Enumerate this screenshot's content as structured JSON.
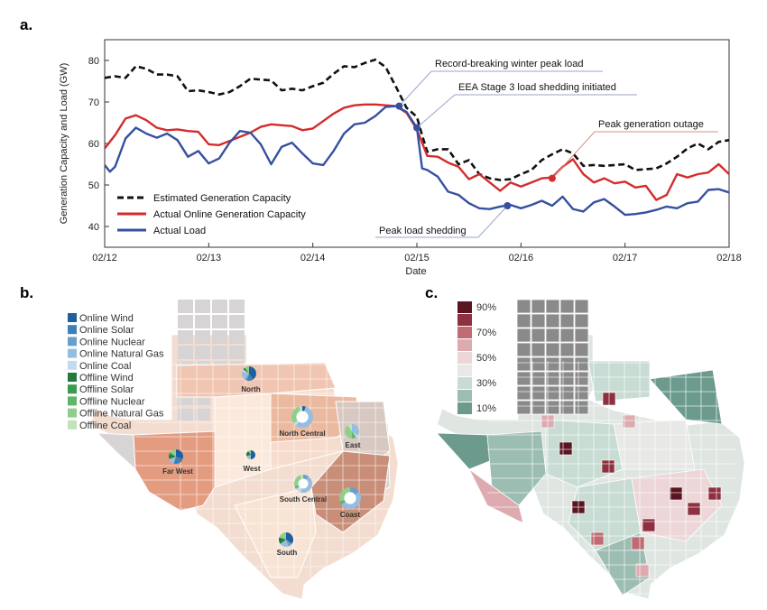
{
  "panels": {
    "a": "a.",
    "b": "b.",
    "c": "c."
  },
  "chart_data": {
    "type": "line",
    "xlabel": "Date",
    "ylabel": "Generation Capacity and Load (GW)",
    "xlim_days": [
      12,
      18
    ],
    "ylim": [
      35,
      85
    ],
    "xticks": [
      {
        "pos": 12,
        "label": "02/12"
      },
      {
        "pos": 13,
        "label": "02/13"
      },
      {
        "pos": 14,
        "label": "02/14"
      },
      {
        "pos": 15,
        "label": "02/15"
      },
      {
        "pos": 16,
        "label": "02/16"
      },
      {
        "pos": 17,
        "label": "02/17"
      },
      {
        "pos": 18,
        "label": "02/18"
      }
    ],
    "yticks": [
      40,
      50,
      60,
      70,
      80
    ],
    "legend_position": "bottom-left",
    "series": [
      {
        "name": "Estimated Generation Capacity",
        "color": "#111111",
        "dash": true,
        "points": [
          [
            12.0,
            75.8
          ],
          [
            12.1,
            76.2
          ],
          [
            12.2,
            75.8
          ],
          [
            12.3,
            78.6
          ],
          [
            12.4,
            78.0
          ],
          [
            12.5,
            76.6
          ],
          [
            12.6,
            76.6
          ],
          [
            12.7,
            76.2
          ],
          [
            12.8,
            72.6
          ],
          [
            12.9,
            72.8
          ],
          [
            13.0,
            72.4
          ],
          [
            13.1,
            71.8
          ],
          [
            13.2,
            72.4
          ],
          [
            13.3,
            73.8
          ],
          [
            13.4,
            75.6
          ],
          [
            13.5,
            75.4
          ],
          [
            13.6,
            75.2
          ],
          [
            13.7,
            72.8
          ],
          [
            13.8,
            73.2
          ],
          [
            13.9,
            72.8
          ],
          [
            14.0,
            73.8
          ],
          [
            14.1,
            74.6
          ],
          [
            14.2,
            76.8
          ],
          [
            14.3,
            78.6
          ],
          [
            14.4,
            78.4
          ],
          [
            14.5,
            79.4
          ],
          [
            14.6,
            80.2
          ],
          [
            14.7,
            78.4
          ],
          [
            14.8,
            73.6
          ],
          [
            14.9,
            68.6
          ],
          [
            15.0,
            66.4
          ],
          [
            15.05,
            62.0
          ],
          [
            15.1,
            58.0
          ],
          [
            15.2,
            58.6
          ],
          [
            15.3,
            58.6
          ],
          [
            15.4,
            55.0
          ],
          [
            15.5,
            56.0
          ],
          [
            15.6,
            52.6
          ],
          [
            15.7,
            51.6
          ],
          [
            15.8,
            51.2
          ],
          [
            15.9,
            51.4
          ],
          [
            16.0,
            52.6
          ],
          [
            16.1,
            53.6
          ],
          [
            16.2,
            56.0
          ],
          [
            16.3,
            57.4
          ],
          [
            16.4,
            58.6
          ],
          [
            16.5,
            57.6
          ],
          [
            16.6,
            54.6
          ],
          [
            16.7,
            54.8
          ],
          [
            16.8,
            54.6
          ],
          [
            16.9,
            54.8
          ],
          [
            17.0,
            55.0
          ],
          [
            17.1,
            53.6
          ],
          [
            17.2,
            53.8
          ],
          [
            17.3,
            54.0
          ],
          [
            17.4,
            55.2
          ],
          [
            17.5,
            56.8
          ],
          [
            17.6,
            58.8
          ],
          [
            17.7,
            60.0
          ],
          [
            17.8,
            58.6
          ],
          [
            17.9,
            60.4
          ],
          [
            18.0,
            60.8
          ]
        ]
      },
      {
        "name": "Actual Online Generation Capacity",
        "color": "#d42c2c",
        "dash": false,
        "points": [
          [
            12.0,
            58.8
          ],
          [
            12.1,
            62.0
          ],
          [
            12.2,
            66.0
          ],
          [
            12.3,
            66.8
          ],
          [
            12.4,
            65.6
          ],
          [
            12.5,
            63.8
          ],
          [
            12.6,
            63.2
          ],
          [
            12.7,
            63.4
          ],
          [
            12.8,
            63.0
          ],
          [
            12.9,
            62.8
          ],
          [
            13.0,
            59.8
          ],
          [
            13.1,
            59.6
          ],
          [
            13.2,
            60.6
          ],
          [
            13.3,
            61.6
          ],
          [
            13.4,
            62.6
          ],
          [
            13.5,
            64.0
          ],
          [
            13.6,
            64.6
          ],
          [
            13.7,
            64.4
          ],
          [
            13.8,
            64.2
          ],
          [
            13.9,
            63.2
          ],
          [
            14.0,
            63.6
          ],
          [
            14.1,
            65.4
          ],
          [
            14.2,
            67.2
          ],
          [
            14.3,
            68.6
          ],
          [
            14.4,
            69.2
          ],
          [
            14.5,
            69.4
          ],
          [
            14.6,
            69.4
          ],
          [
            14.7,
            69.2
          ],
          [
            14.8,
            69.0
          ],
          [
            14.9,
            67.4
          ],
          [
            15.0,
            63.4
          ],
          [
            15.1,
            57.0
          ],
          [
            15.2,
            56.8
          ],
          [
            15.3,
            55.4
          ],
          [
            15.4,
            54.4
          ],
          [
            15.5,
            51.4
          ],
          [
            15.6,
            52.6
          ],
          [
            15.7,
            50.6
          ],
          [
            15.8,
            48.6
          ],
          [
            15.9,
            50.6
          ],
          [
            16.0,
            49.6
          ],
          [
            16.1,
            50.6
          ],
          [
            16.2,
            51.6
          ],
          [
            16.3,
            51.8
          ],
          [
            16.4,
            54.4
          ],
          [
            16.5,
            56.2
          ],
          [
            16.6,
            52.6
          ],
          [
            16.7,
            50.6
          ],
          [
            16.8,
            51.6
          ],
          [
            16.9,
            50.4
          ],
          [
            17.0,
            50.8
          ],
          [
            17.1,
            49.4
          ],
          [
            17.2,
            49.8
          ],
          [
            17.3,
            46.4
          ],
          [
            17.4,
            47.6
          ],
          [
            17.5,
            52.6
          ],
          [
            17.6,
            51.8
          ],
          [
            17.7,
            52.6
          ],
          [
            17.8,
            53.0
          ],
          [
            17.9,
            55.0
          ],
          [
            18.0,
            52.6
          ]
        ]
      },
      {
        "name": "Actual Load",
        "color": "#3650a0",
        "dash": false,
        "points": [
          [
            12.0,
            54.8
          ],
          [
            12.05,
            53.2
          ],
          [
            12.1,
            54.4
          ],
          [
            12.2,
            61.2
          ],
          [
            12.3,
            63.8
          ],
          [
            12.4,
            62.4
          ],
          [
            12.5,
            61.4
          ],
          [
            12.6,
            62.4
          ],
          [
            12.7,
            60.8
          ],
          [
            12.8,
            56.8
          ],
          [
            12.9,
            58.2
          ],
          [
            13.0,
            55.2
          ],
          [
            13.1,
            56.4
          ],
          [
            13.2,
            60.2
          ],
          [
            13.3,
            63.0
          ],
          [
            13.4,
            62.6
          ],
          [
            13.5,
            59.8
          ],
          [
            13.6,
            55.0
          ],
          [
            13.7,
            59.2
          ],
          [
            13.8,
            60.2
          ],
          [
            13.9,
            57.6
          ],
          [
            14.0,
            55.2
          ],
          [
            14.1,
            54.8
          ],
          [
            14.2,
            58.2
          ],
          [
            14.3,
            62.4
          ],
          [
            14.4,
            64.6
          ],
          [
            14.5,
            65.0
          ],
          [
            14.6,
            66.6
          ],
          [
            14.7,
            68.8
          ],
          [
            14.8,
            69.0
          ],
          [
            14.9,
            67.6
          ],
          [
            15.0,
            63.8
          ],
          [
            15.05,
            54.0
          ],
          [
            15.1,
            53.6
          ],
          [
            15.2,
            52.0
          ],
          [
            15.3,
            48.4
          ],
          [
            15.4,
            47.6
          ],
          [
            15.5,
            45.6
          ],
          [
            15.6,
            44.4
          ],
          [
            15.7,
            44.2
          ],
          [
            15.8,
            44.8
          ],
          [
            15.9,
            45.2
          ],
          [
            16.0,
            44.4
          ],
          [
            16.1,
            45.2
          ],
          [
            16.2,
            46.2
          ],
          [
            16.3,
            45.0
          ],
          [
            16.4,
            47.2
          ],
          [
            16.5,
            44.2
          ],
          [
            16.6,
            43.6
          ],
          [
            16.7,
            45.8
          ],
          [
            16.8,
            46.6
          ],
          [
            16.9,
            44.8
          ],
          [
            17.0,
            42.8
          ],
          [
            17.1,
            43.0
          ],
          [
            17.2,
            43.4
          ],
          [
            17.3,
            44.0
          ],
          [
            17.4,
            44.8
          ],
          [
            17.5,
            44.4
          ],
          [
            17.6,
            45.6
          ],
          [
            17.7,
            46.0
          ],
          [
            17.8,
            48.8
          ],
          [
            17.9,
            49.0
          ],
          [
            18.0,
            48.2
          ]
        ]
      }
    ],
    "markers": [
      {
        "x": 14.83,
        "y": 69.0,
        "color": "#3650a0"
      },
      {
        "x": 15.0,
        "y": 63.8,
        "color": "#3650a0"
      },
      {
        "x": 15.87,
        "y": 45.0,
        "color": "#3650a0"
      },
      {
        "x": 16.3,
        "y": 51.6,
        "color": "#d42c2c"
      }
    ],
    "annotations": [
      {
        "text": "Record-breaking winter peak load",
        "x": 14.83,
        "y": 69.0
      },
      {
        "text": "EEA Stage 3 load shedding initiated",
        "x": 15.0,
        "y": 63.8
      },
      {
        "text": "Peak generation outage",
        "x": 16.3,
        "y": 51.6
      },
      {
        "text": "Peak load shedding",
        "x": 15.87,
        "y": 45.0
      }
    ]
  },
  "map_b": {
    "legend": [
      {
        "label": "Online Wind",
        "color": "#1f5f9e"
      },
      {
        "label": "Online Solar",
        "color": "#3f7fb8"
      },
      {
        "label": "Online Nuclear",
        "color": "#6a9fcc"
      },
      {
        "label": "Online Natural Gas",
        "color": "#94bde0"
      },
      {
        "label": "Online Coal",
        "color": "#c2dcef"
      },
      {
        "label": "Offline Wind",
        "color": "#237a3c"
      },
      {
        "label": "Offline Solar",
        "color": "#3a9a50"
      },
      {
        "label": "Offline Nuclear",
        "color": "#5eb56b"
      },
      {
        "label": "Offline Natural Gas",
        "color": "#8fcf8c"
      },
      {
        "label": "Offline Coal",
        "color": "#c0e3b8"
      }
    ],
    "regions": [
      "North",
      "North Central",
      "East",
      "Far West",
      "West",
      "South Central",
      "Coast",
      "South"
    ]
  },
  "map_c": {
    "legend": [
      {
        "label": "90%",
        "color": "#5a1520"
      },
      {
        "label": "",
        "color": "#8e3040"
      },
      {
        "label": "70%",
        "color": "#c06a72"
      },
      {
        "label": "",
        "color": "#ddaab0"
      },
      {
        "label": "50%",
        "color": "#ecd6d8"
      },
      {
        "label": "",
        "color": "#e8e8e6"
      },
      {
        "label": "30%",
        "color": "#c8dcd4"
      },
      {
        "label": "",
        "color": "#9cbdb2"
      },
      {
        "label": "10%",
        "color": "#6c9b8e"
      }
    ]
  }
}
